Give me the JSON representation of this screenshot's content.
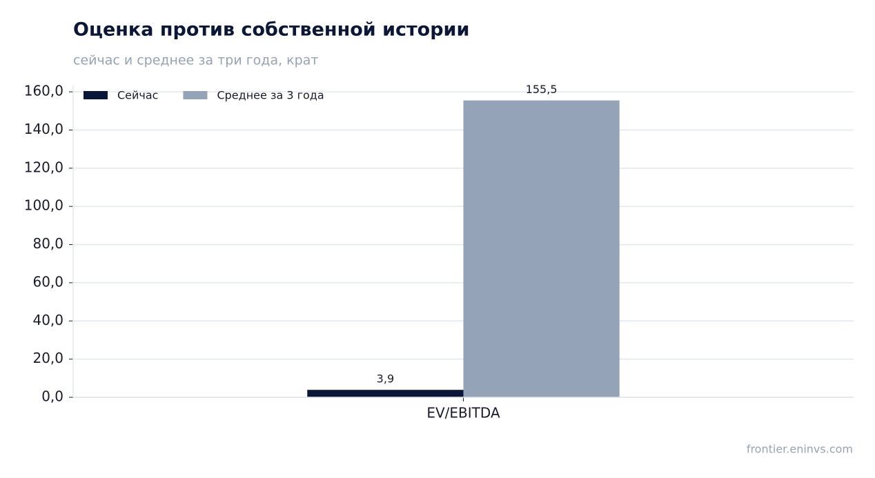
{
  "chart_data": {
    "type": "bar",
    "title": "Оценка против собственной истории",
    "subtitle": "сейчас и среднее за три года, крат",
    "categories": [
      "EV/EBITDA"
    ],
    "series": [
      {
        "name": "Сейчас",
        "color": "#0b1739",
        "values": [
          3.9
        ],
        "value_labels": [
          "3,9"
        ]
      },
      {
        "name": "Среднее за 3 года",
        "color": "#94a3b8",
        "values": [
          155.5
        ],
        "value_labels": [
          "155,5"
        ]
      }
    ],
    "ylim": [
      0,
      163.3
    ],
    "yticks": [
      {
        "value": 0,
        "label": "0,0"
      },
      {
        "value": 20,
        "label": "20,0"
      },
      {
        "value": 40,
        "label": "40,0"
      },
      {
        "value": 60,
        "label": "60,0"
      },
      {
        "value": 80,
        "label": "80,0"
      },
      {
        "value": 100,
        "label": "100,0"
      },
      {
        "value": 120,
        "label": "120,0"
      },
      {
        "value": 140,
        "label": "140,0"
      },
      {
        "value": 160,
        "label": "160,0"
      }
    ],
    "grid": true,
    "legend": "upper-left",
    "footer": "frontier.eninvs.com"
  }
}
